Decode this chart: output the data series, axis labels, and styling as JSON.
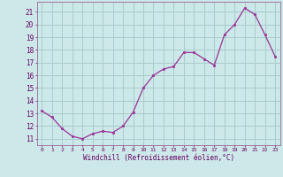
{
  "x": [
    0,
    1,
    2,
    3,
    4,
    5,
    6,
    7,
    8,
    9,
    10,
    11,
    12,
    13,
    14,
    15,
    16,
    17,
    18,
    19,
    20,
    21,
    22,
    23
  ],
  "y": [
    13.2,
    12.7,
    11.8,
    11.2,
    11.0,
    11.4,
    11.6,
    11.5,
    12.0,
    13.1,
    15.0,
    16.0,
    16.5,
    16.7,
    17.8,
    17.8,
    17.3,
    16.8,
    19.2,
    20.0,
    21.3,
    20.8,
    19.2,
    17.5
  ],
  "x_labels": [
    "0",
    "1",
    "2",
    "3",
    "4",
    "5",
    "6",
    "7",
    "8",
    "9",
    "10",
    "11",
    "12",
    "13",
    "14",
    "15",
    "16",
    "17",
    "18",
    "19",
    "20",
    "21",
    "22",
    "23"
  ],
  "y_ticks": [
    11,
    12,
    13,
    14,
    15,
    16,
    17,
    18,
    19,
    20,
    21
  ],
  "ylim": [
    10.5,
    21.8
  ],
  "xlim": [
    -0.5,
    23.5
  ],
  "line_color": "#993399",
  "marker_color": "#993399",
  "bg_color": "#cce8e8",
  "grid_color": "#aacccc",
  "xlabel": "Windchill (Refroidissement éolien,°C)"
}
